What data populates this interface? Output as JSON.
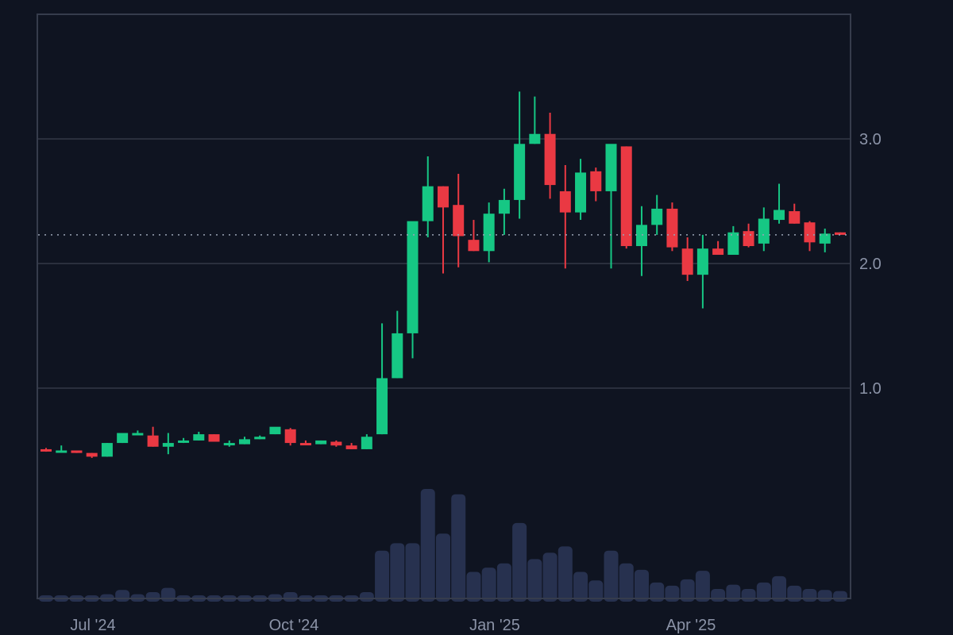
{
  "chart_data": {
    "type": "candlestick",
    "title": "",
    "xlabel": "",
    "ylabel": "",
    "ylim": [
      0,
      3.6
    ],
    "grid": true,
    "legend": "none",
    "x_ticks": [
      "Jul '24",
      "Oct '24",
      "Jan '25",
      "Apr '25"
    ],
    "y_ticks": [
      1.0,
      2.0,
      3.0
    ],
    "y_tick_labels": [
      "1.0",
      "2.0",
      "3.0"
    ],
    "last_price": 2.23,
    "colors": {
      "up": "#16c784",
      "down": "#ea3943",
      "volume": "#27314f",
      "background": "#0f1421",
      "grid": "#2a2f3d",
      "axis_text": "#8b93a7",
      "price_line": "#9aa3b5"
    },
    "series": [
      {
        "name": "OHLC",
        "values": [
          [
            0.51,
            0.52,
            0.49,
            0.5
          ],
          [
            0.5,
            0.54,
            0.5,
            0.5
          ],
          [
            0.5,
            0.5,
            0.48,
            0.48
          ],
          [
            0.48,
            0.48,
            0.44,
            0.45
          ],
          [
            0.45,
            0.56,
            0.45,
            0.56
          ],
          [
            0.56,
            0.63,
            0.56,
            0.64
          ],
          [
            0.63,
            0.66,
            0.63,
            0.64
          ],
          [
            0.62,
            0.69,
            0.53,
            0.53
          ],
          [
            0.53,
            0.64,
            0.47,
            0.56
          ],
          [
            0.57,
            0.6,
            0.56,
            0.58
          ],
          [
            0.58,
            0.65,
            0.58,
            0.63
          ],
          [
            0.63,
            0.63,
            0.57,
            0.57
          ],
          [
            0.55,
            0.58,
            0.53,
            0.56
          ],
          [
            0.55,
            0.61,
            0.55,
            0.59
          ],
          [
            0.59,
            0.62,
            0.59,
            0.61
          ],
          [
            0.63,
            0.68,
            0.63,
            0.69
          ],
          [
            0.67,
            0.68,
            0.54,
            0.56
          ],
          [
            0.56,
            0.58,
            0.55,
            0.55
          ],
          [
            0.55,
            0.58,
            0.55,
            0.58
          ],
          [
            0.57,
            0.58,
            0.53,
            0.54
          ],
          [
            0.54,
            0.56,
            0.51,
            0.51
          ],
          [
            0.51,
            0.63,
            0.51,
            0.61
          ],
          [
            0.63,
            1.52,
            0.63,
            1.08
          ],
          [
            1.08,
            1.62,
            1.08,
            1.44
          ],
          [
            1.44,
            2.32,
            1.24,
            2.34
          ],
          [
            2.34,
            2.86,
            2.21,
            2.62
          ],
          [
            2.62,
            2.62,
            1.92,
            2.45
          ],
          [
            2.47,
            2.72,
            1.97,
            2.22
          ],
          [
            2.19,
            2.35,
            2.1,
            2.1
          ],
          [
            2.1,
            2.49,
            2.01,
            2.4
          ],
          [
            2.4,
            2.6,
            2.23,
            2.51
          ],
          [
            2.51,
            3.38,
            2.36,
            2.96
          ],
          [
            2.96,
            3.34,
            2.96,
            3.04
          ],
          [
            3.04,
            3.21,
            2.52,
            2.63
          ],
          [
            2.58,
            2.79,
            1.96,
            2.41
          ],
          [
            2.41,
            2.84,
            2.35,
            2.73
          ],
          [
            2.74,
            2.77,
            2.5,
            2.58
          ],
          [
            2.58,
            2.95,
            1.96,
            2.96
          ],
          [
            2.94,
            2.94,
            2.12,
            2.14
          ],
          [
            2.14,
            2.46,
            1.9,
            2.31
          ],
          [
            2.31,
            2.55,
            2.23,
            2.44
          ],
          [
            2.44,
            2.49,
            2.1,
            2.13
          ],
          [
            2.12,
            2.21,
            1.86,
            1.91
          ],
          [
            1.91,
            2.23,
            1.64,
            2.12
          ],
          [
            2.12,
            2.18,
            2.07,
            2.07
          ],
          [
            2.07,
            2.3,
            2.07,
            2.25
          ],
          [
            2.26,
            2.32,
            2.13,
            2.14
          ],
          [
            2.16,
            2.45,
            2.1,
            2.36
          ],
          [
            2.35,
            2.64,
            2.32,
            2.43
          ],
          [
            2.42,
            2.48,
            2.32,
            2.32
          ],
          [
            2.33,
            2.34,
            2.1,
            2.17
          ],
          [
            2.16,
            2.28,
            2.09,
            2.24
          ],
          [
            2.25,
            2.25,
            2.23,
            2.23
          ]
        ]
      },
      {
        "name": "Volume",
        "values": [
          3,
          3,
          3,
          3,
          4,
          8,
          4,
          6,
          10,
          3,
          3,
          3,
          3,
          3,
          3,
          4,
          6,
          3,
          3,
          3,
          3,
          6,
          45,
          52,
          52,
          103,
          61,
          98,
          25,
          29,
          33,
          71,
          37,
          43,
          49,
          25,
          17,
          45,
          33,
          27,
          15,
          12,
          18,
          26,
          9,
          13,
          9,
          15,
          21,
          12,
          9,
          8,
          7
        ]
      }
    ]
  }
}
